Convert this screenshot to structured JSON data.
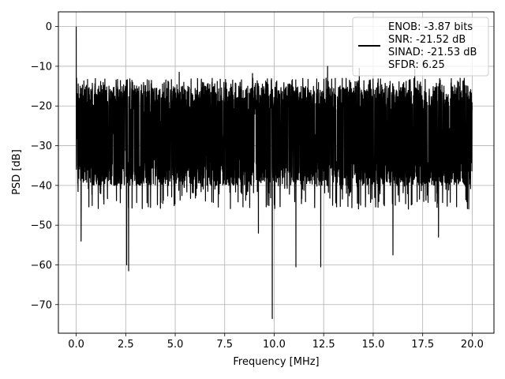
{
  "chart_data": {
    "type": "line",
    "title": "",
    "xlabel": "Frequency [MHz]",
    "ylabel": "PSD [dB]",
    "xlim": [
      -0.9,
      21.1
    ],
    "ylim": [
      -77.2,
      3.7
    ],
    "xticks": [
      0.0,
      2.5,
      5.0,
      7.5,
      10.0,
      12.5,
      15.0,
      17.5,
      20.0
    ],
    "xtick_labels": [
      "0.0",
      "2.5",
      "5.0",
      "7.5",
      "10.0",
      "12.5",
      "15.0",
      "17.5",
      "20.0"
    ],
    "yticks": [
      0,
      -10,
      -20,
      -30,
      -40,
      -50,
      -60,
      -70
    ],
    "ytick_labels": [
      "0",
      "−10",
      "−20",
      "−30",
      "−40",
      "−50",
      "−60",
      "−70"
    ],
    "grid": true,
    "legend_position": "top-right",
    "series_color": "#000000",
    "legend_lines": [
      "ENOB: -3.87 bits",
      "SNR: -21.52 dB",
      "SINAD: -21.53 dB",
      "SFDR: 6.25"
    ],
    "series": [
      {
        "x_range": [
          0.0,
          20.0
        ],
        "noise_floor_band_db": [
          -40,
          -15
        ],
        "peak_db": 0,
        "notable_points": [
          {
            "x": 0.0,
            "y": 0.0
          },
          {
            "x": 0.02,
            "y": -13
          },
          {
            "x": 0.25,
            "y": -54
          },
          {
            "x": 2.55,
            "y": -60
          },
          {
            "x": 2.65,
            "y": -61.5
          },
          {
            "x": 9.2,
            "y": -52
          },
          {
            "x": 9.9,
            "y": -73.5
          },
          {
            "x": 11.1,
            "y": -60.5
          },
          {
            "x": 12.35,
            "y": -60.5
          },
          {
            "x": 16.0,
            "y": -57.5
          },
          {
            "x": 18.3,
            "y": -53
          },
          {
            "x": 5.2,
            "y": -11.5
          },
          {
            "x": 8.9,
            "y": -11.8
          },
          {
            "x": 12.7,
            "y": -10
          },
          {
            "x": 14.3,
            "y": -10.5
          },
          {
            "x": 17.1,
            "y": -10.8
          }
        ]
      }
    ]
  }
}
